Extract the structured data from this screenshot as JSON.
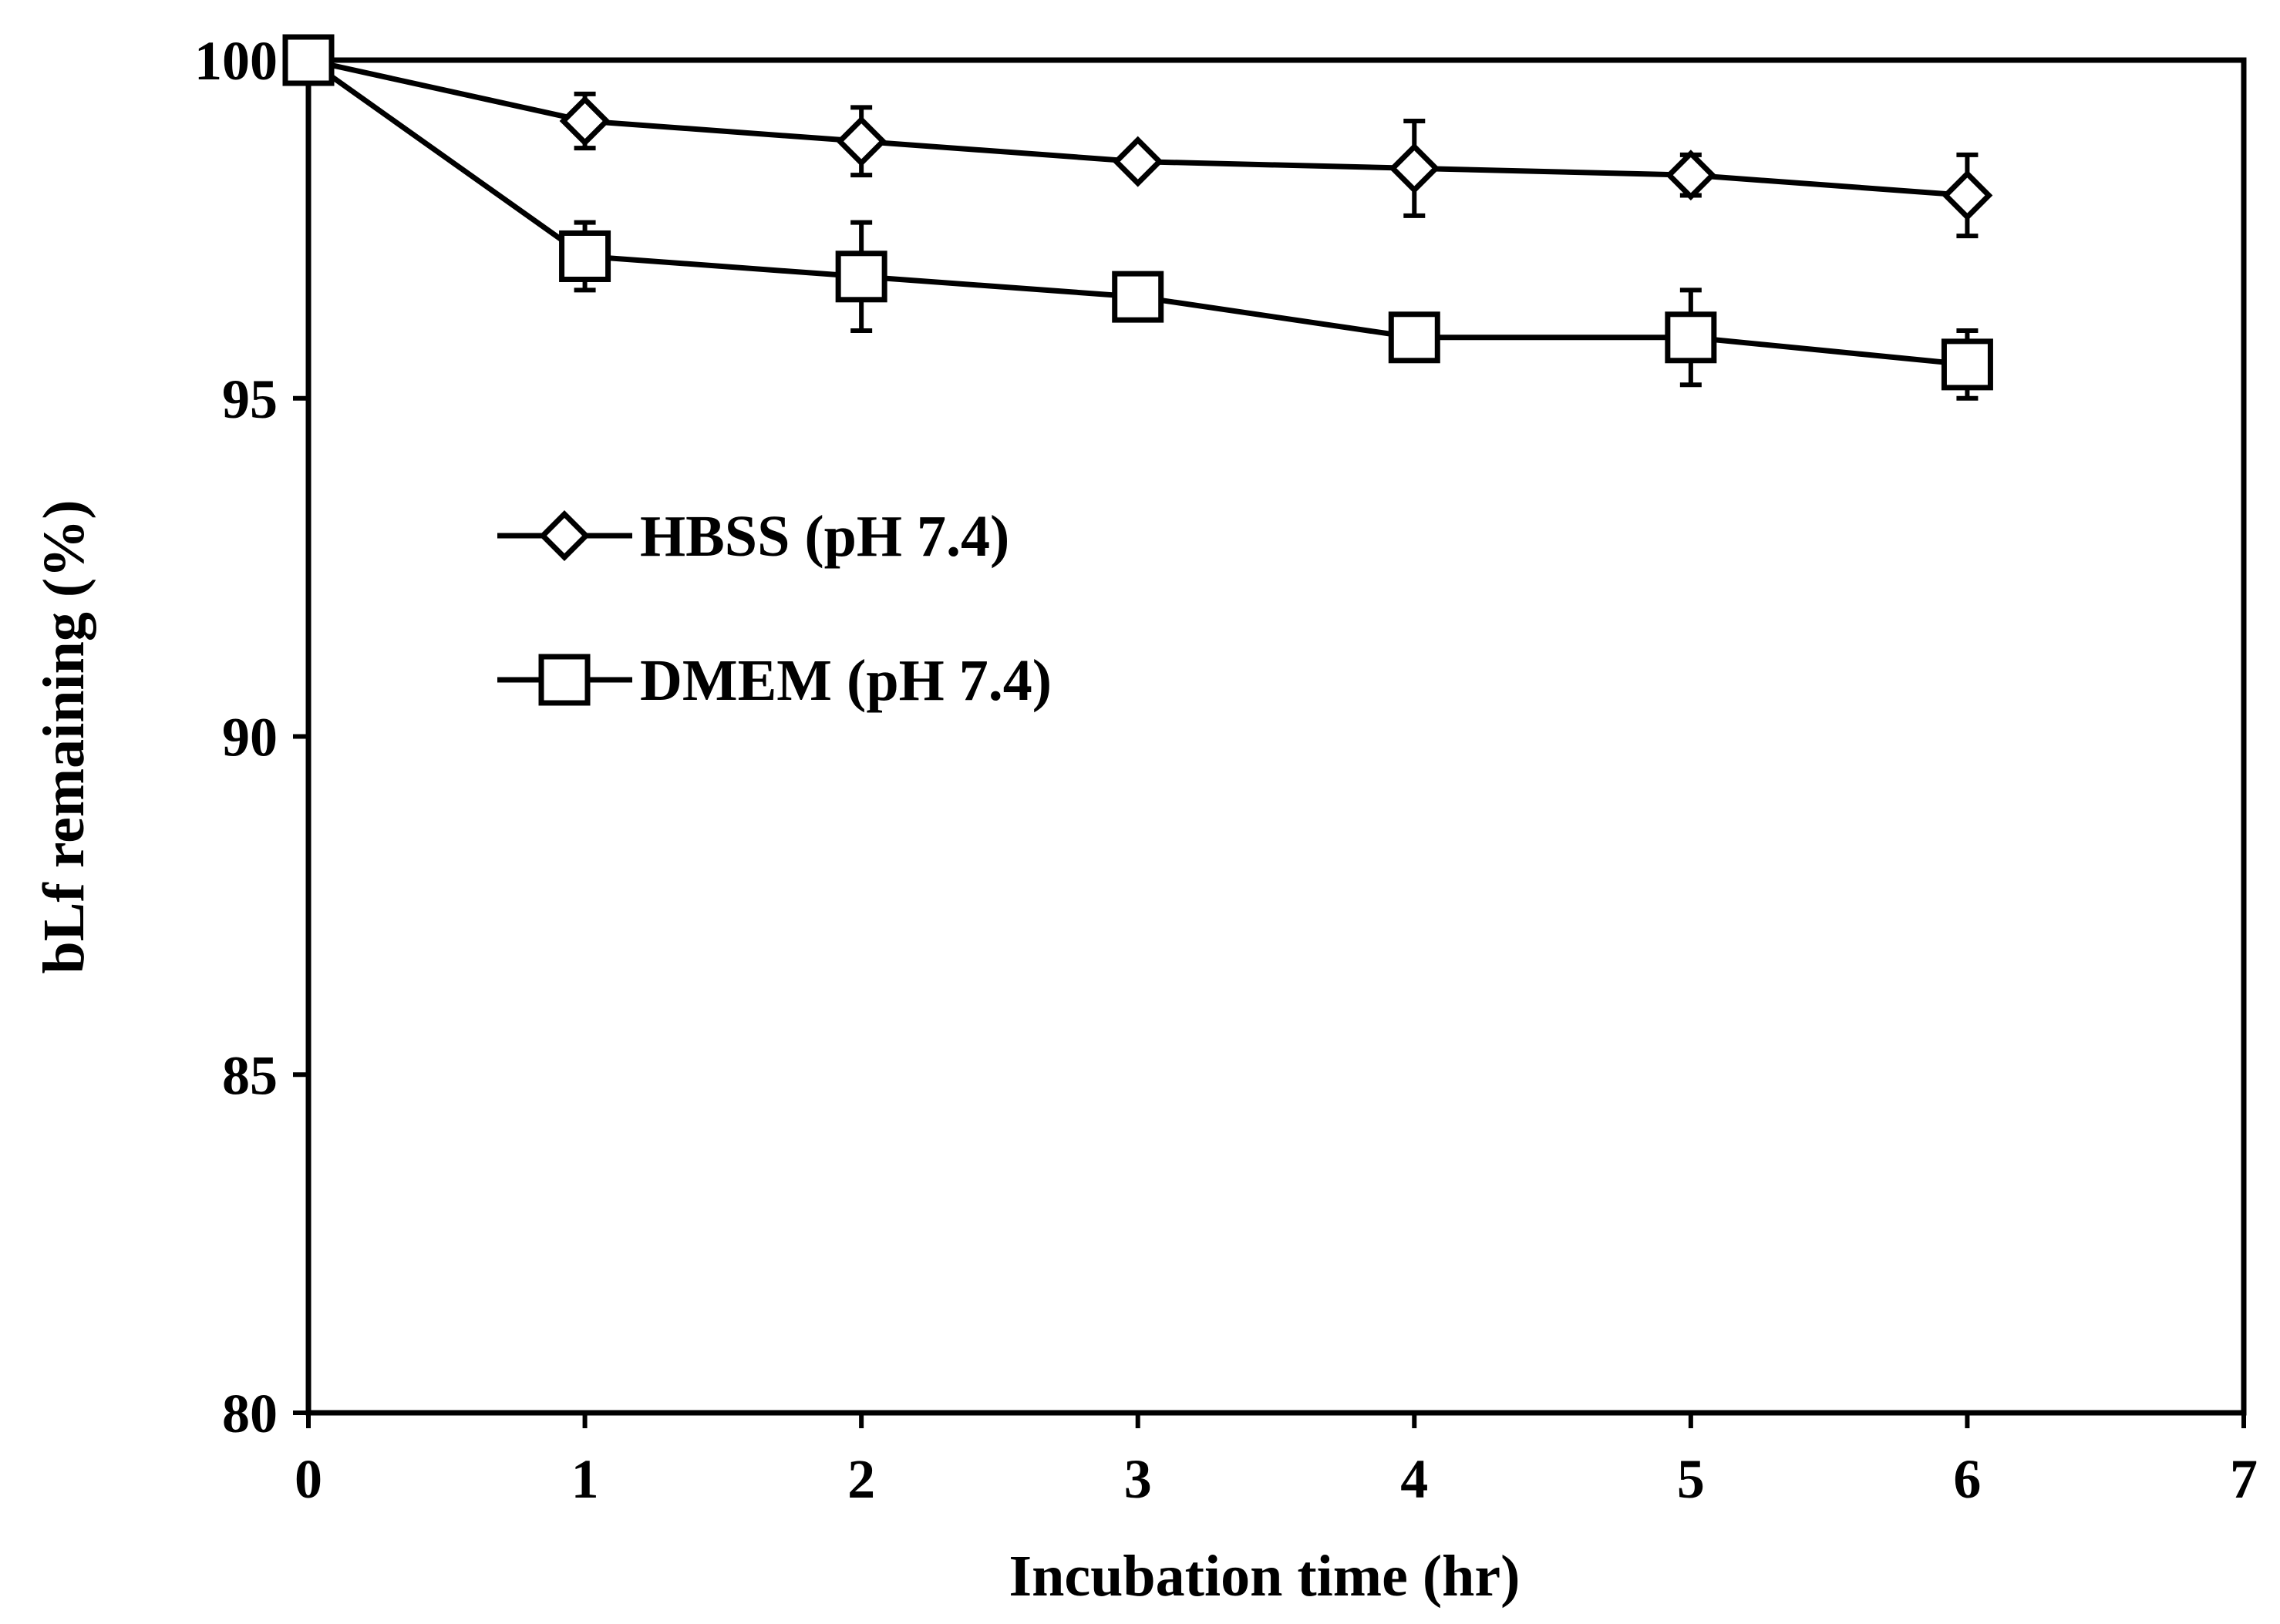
{
  "chart_data": {
    "type": "line",
    "title": "",
    "xlabel": "Incubation time (hr)",
    "ylabel": "bLf remaining (%)",
    "xlim": [
      0,
      7
    ],
    "ylim": [
      80,
      100
    ],
    "xticks": [
      "0",
      "1",
      "2",
      "3",
      "4",
      "5",
      "6",
      "7"
    ],
    "yticks": [
      "80",
      "85",
      "90",
      "95",
      "100"
    ],
    "grid": false,
    "legend_position": "upper-left",
    "series": [
      {
        "name": "HBSS (pH 7.4)",
        "marker": "diamond",
        "x": [
          0,
          1,
          2,
          3,
          4,
          5,
          6
        ],
        "values": [
          100,
          99.1,
          98.8,
          98.5,
          98.4,
          98.3,
          98.0
        ],
        "errors": [
          0.1,
          0.4,
          0.5,
          0.15,
          0.7,
          0.3,
          0.6
        ]
      },
      {
        "name": "DMEM (pH 7.4)",
        "marker": "square",
        "x": [
          0,
          1,
          2,
          3,
          4,
          5,
          6
        ],
        "values": [
          100,
          97.1,
          96.8,
          96.5,
          95.9,
          95.9,
          95.5
        ],
        "errors": [
          0.1,
          0.5,
          0.8,
          0.2,
          0.2,
          0.7,
          0.5
        ]
      }
    ]
  }
}
